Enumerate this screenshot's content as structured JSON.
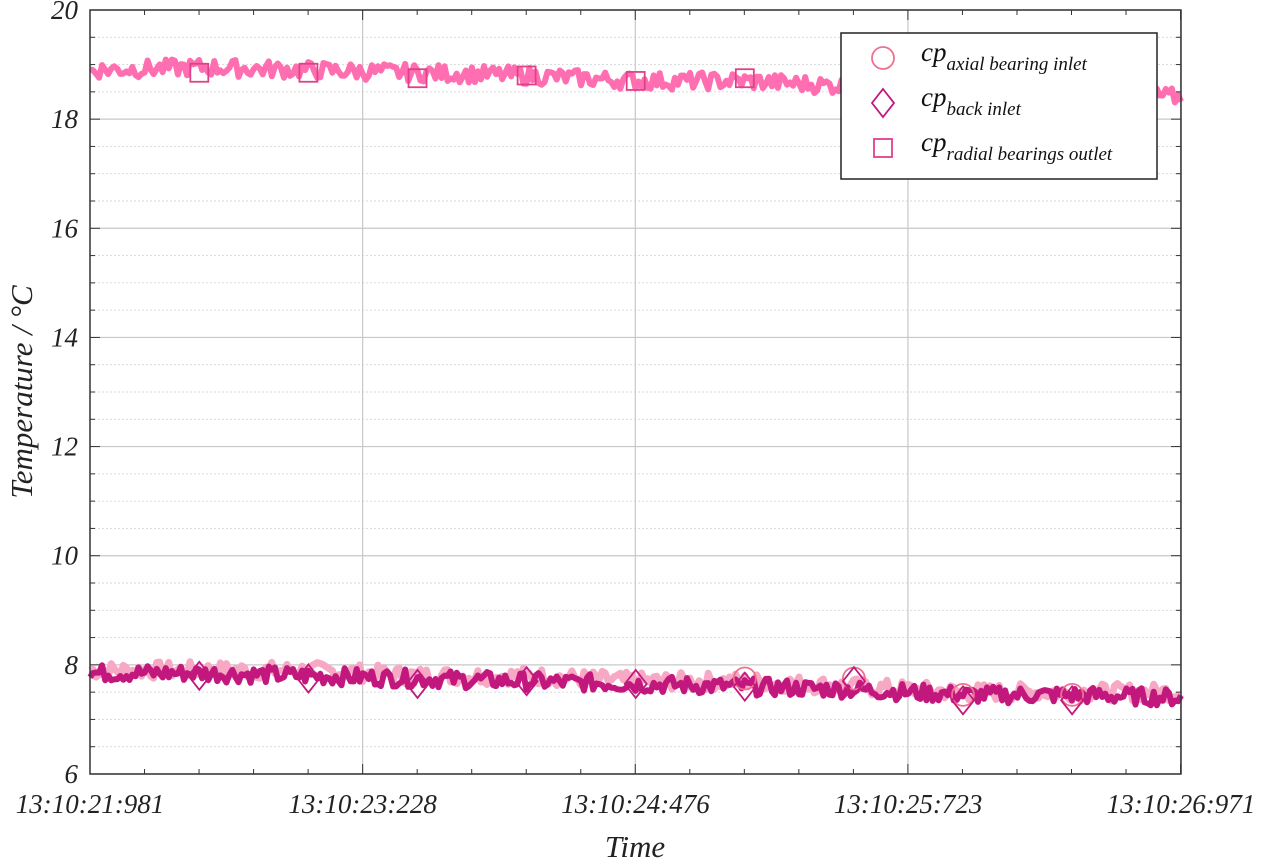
{
  "chart_data": {
    "type": "line",
    "xlabel": "Time",
    "ylabel": "Temperature / °C",
    "ylim": [
      6,
      20
    ],
    "yticks": [
      "6",
      "8",
      "10",
      "12",
      "14",
      "16",
      "18",
      "20"
    ],
    "xlim_seconds_of_minute": [
      21.981,
      26.971
    ],
    "xticks": [
      "13:10:21:981",
      "13:10:23:228",
      "13:10:24:476",
      "13:10:25:723",
      "13:10:26:971"
    ],
    "grid": true,
    "legend_position": "top-right",
    "series": [
      {
        "name": "axial bearing inlet",
        "legend_main": "cp",
        "legend_sub": "axial bearing inlet",
        "marker": "circle",
        "color": "#f7a8c4",
        "marker_color": "#ef6f8f",
        "x": [
          21.981,
          22.481,
          22.98,
          23.479,
          23.978,
          24.477,
          24.976,
          25.475,
          25.974,
          26.473,
          26.971
        ],
        "values": [
          7.9,
          7.9,
          7.9,
          7.8,
          7.8,
          7.7,
          7.7,
          7.6,
          7.5,
          7.5,
          7.5
        ],
        "markers_x": [
          24.976,
          25.475,
          25.974,
          26.473
        ],
        "markers_y": [
          7.75,
          7.75,
          7.45,
          7.45
        ]
      },
      {
        "name": "back inlet",
        "legend_main": "cp",
        "legend_sub": "back inlet",
        "marker": "diamond",
        "color": "#c2187e",
        "marker_color": "#c2187e",
        "x": [
          21.981,
          22.481,
          22.98,
          23.479,
          23.978,
          24.477,
          24.976,
          25.475,
          25.974,
          26.473,
          26.971
        ],
        "values": [
          7.85,
          7.85,
          7.8,
          7.75,
          7.7,
          7.65,
          7.6,
          7.55,
          7.45,
          7.45,
          7.4
        ],
        "markers_x": [
          22.481,
          22.98,
          23.479,
          23.978,
          24.477,
          24.976,
          25.475,
          25.974,
          26.473
        ],
        "markers_y": [
          7.8,
          7.75,
          7.65,
          7.7,
          7.65,
          7.6,
          7.7,
          7.35,
          7.35
        ]
      },
      {
        "name": "radial bearings outlet",
        "legend_main": "cp",
        "legend_sub": "radial bearings outlet",
        "marker": "square",
        "color": "#ff6eb0",
        "marker_color": "#e0408a",
        "x": [
          21.981,
          22.481,
          22.98,
          23.479,
          23.978,
          24.477,
          24.976,
          25.475,
          25.974,
          26.473,
          26.971
        ],
        "values": [
          18.9,
          18.95,
          18.9,
          18.85,
          18.8,
          18.7,
          18.7,
          18.6,
          18.55,
          18.5,
          18.4
        ],
        "markers_x": [
          22.481,
          22.98,
          23.479,
          23.978,
          24.477,
          24.976
        ],
        "markers_y": [
          18.85,
          18.85,
          18.75,
          18.8,
          18.7,
          18.75
        ]
      }
    ]
  }
}
